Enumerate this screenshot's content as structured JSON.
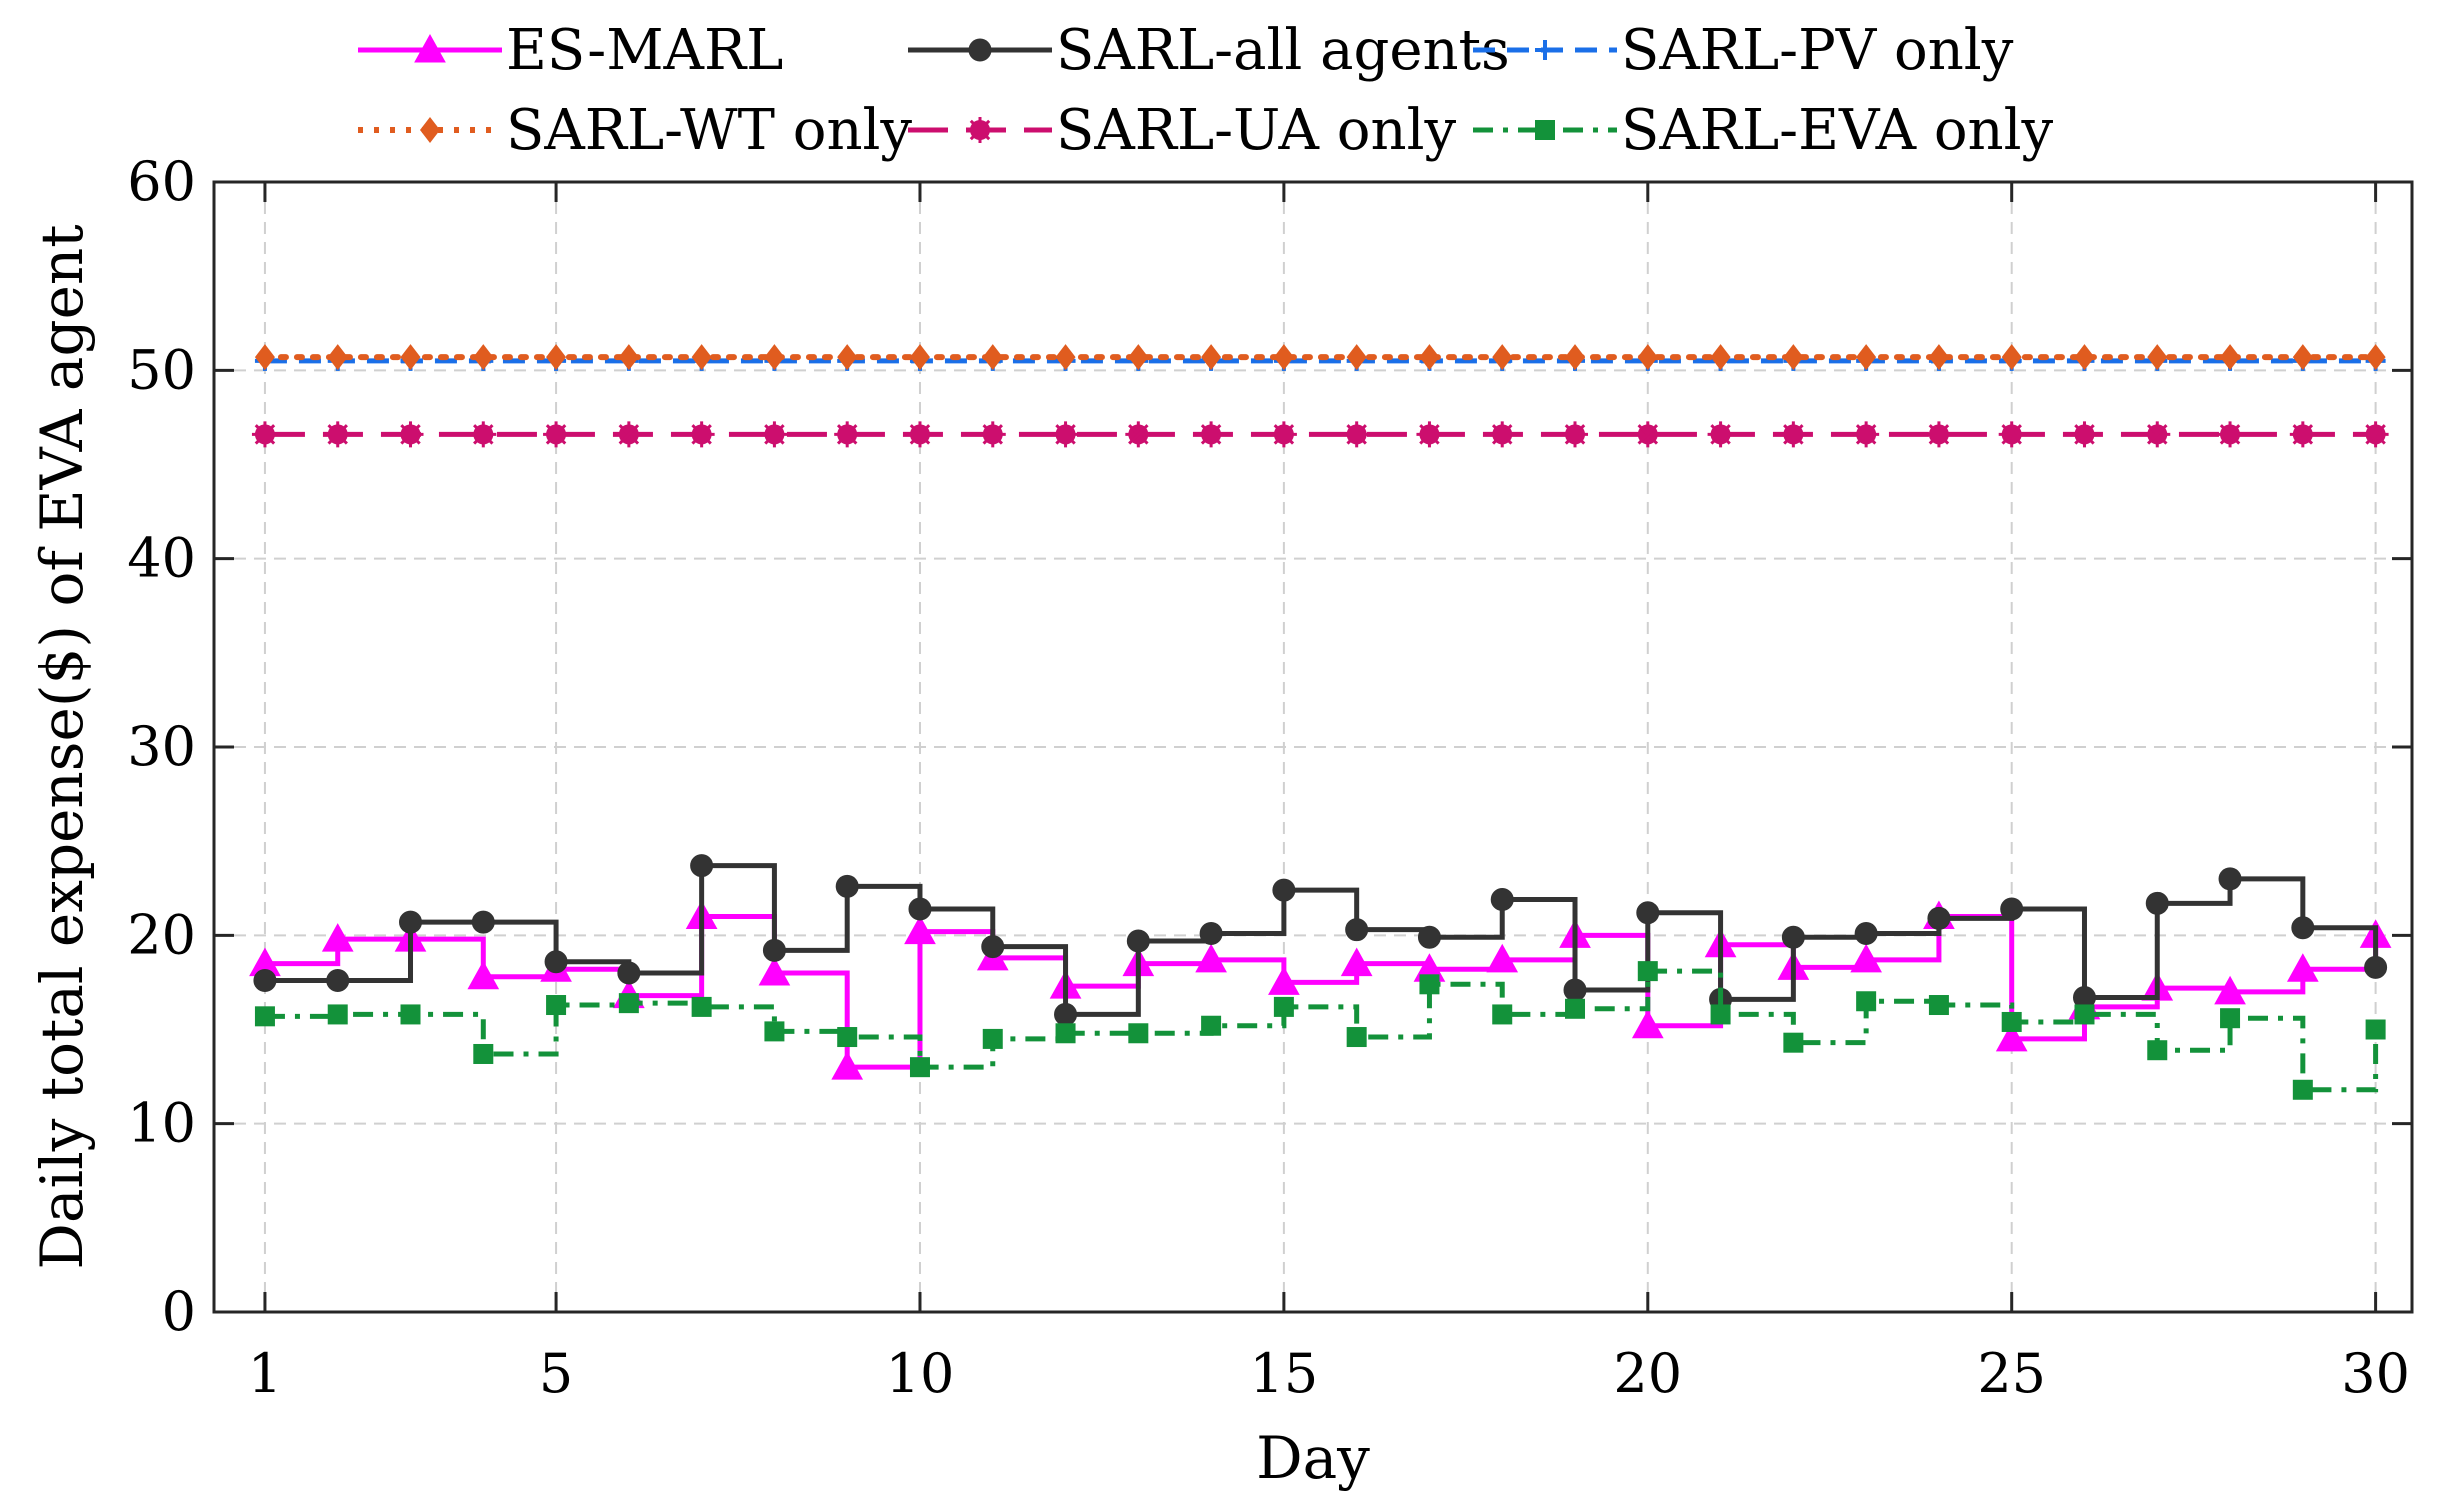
{
  "chart_data": {
    "type": "line",
    "step": "stairs",
    "title": "",
    "xlabel": "Day",
    "ylabel": "Daily total expense($) of EVA agent",
    "xlim": [
      0.3,
      30.5
    ],
    "ylim": [
      0,
      60
    ],
    "xticks": [
      1,
      5,
      10,
      15,
      20,
      25,
      30
    ],
    "yticks": [
      0,
      10,
      20,
      30,
      40,
      50,
      60
    ],
    "grid": true,
    "legend_position": "top-outside",
    "x": [
      1,
      2,
      3,
      4,
      5,
      6,
      7,
      8,
      9,
      10,
      11,
      12,
      13,
      14,
      15,
      16,
      17,
      18,
      19,
      20,
      21,
      22,
      23,
      24,
      25,
      26,
      27,
      28,
      29,
      30
    ],
    "series": [
      {
        "name": "ES-MARL",
        "color": "#ff00ff",
        "line_style": "solid",
        "marker": "triangle",
        "values": [
          18.5,
          19.8,
          19.8,
          17.8,
          18.2,
          16.8,
          21.0,
          18.0,
          13.0,
          20.2,
          18.8,
          17.3,
          18.5,
          18.7,
          17.5,
          18.5,
          18.2,
          18.7,
          20.0,
          15.2,
          19.5,
          18.3,
          18.7,
          21.0,
          14.5,
          16.2,
          17.2,
          17.0,
          18.2,
          20.0
        ]
      },
      {
        "name": "SARL-all agents",
        "color": "#333333",
        "line_style": "solid",
        "marker": "circle",
        "values": [
          17.6,
          17.6,
          20.7,
          20.7,
          18.6,
          18.0,
          23.7,
          19.2,
          22.6,
          21.4,
          19.4,
          15.8,
          19.7,
          20.1,
          22.4,
          20.3,
          19.9,
          21.9,
          17.1,
          21.2,
          16.6,
          19.9,
          20.1,
          20.9,
          21.4,
          16.7,
          21.7,
          23.0,
          20.4,
          18.3
        ]
      },
      {
        "name": "SARL-PV only",
        "color": "#1a6fe8",
        "line_style": "dashed",
        "marker": "plus",
        "values": [
          50.5,
          50.5,
          50.5,
          50.5,
          50.5,
          50.5,
          50.5,
          50.5,
          50.5,
          50.5,
          50.5,
          50.5,
          50.5,
          50.5,
          50.5,
          50.5,
          50.5,
          50.5,
          50.5,
          50.5,
          50.5,
          50.5,
          50.5,
          50.5,
          50.5,
          50.5,
          50.5,
          50.5,
          50.5,
          50.5
        ]
      },
      {
        "name": "SARL-WT only",
        "color": "#e05c1f",
        "line_style": "dotted",
        "marker": "diamond",
        "values": [
          50.7,
          50.7,
          50.7,
          50.7,
          50.7,
          50.7,
          50.7,
          50.7,
          50.7,
          50.7,
          50.7,
          50.7,
          50.7,
          50.7,
          50.7,
          50.7,
          50.7,
          50.7,
          50.7,
          50.7,
          50.7,
          50.7,
          50.7,
          50.7,
          50.7,
          50.7,
          50.7,
          50.7,
          50.7,
          50.7
        ]
      },
      {
        "name": "SARL-UA only",
        "color": "#cc0e6e",
        "line_style": "long-dash",
        "marker": "asterisk",
        "values": [
          46.6,
          46.6,
          46.6,
          46.6,
          46.6,
          46.6,
          46.6,
          46.6,
          46.6,
          46.6,
          46.6,
          46.6,
          46.6,
          46.6,
          46.6,
          46.6,
          46.6,
          46.6,
          46.6,
          46.6,
          46.6,
          46.6,
          46.6,
          46.6,
          46.6,
          46.6,
          46.6,
          46.6,
          46.6,
          46.6
        ]
      },
      {
        "name": "SARL-EVA only",
        "color": "#13923a",
        "line_style": "dash-dot",
        "marker": "square",
        "values": [
          15.7,
          15.8,
          15.8,
          13.7,
          16.3,
          16.4,
          16.2,
          14.9,
          14.6,
          13.0,
          14.5,
          14.8,
          14.8,
          15.2,
          16.2,
          14.6,
          17.4,
          15.8,
          16.1,
          18.1,
          15.8,
          14.3,
          16.5,
          16.3,
          15.4,
          15.8,
          13.9,
          15.6,
          11.8,
          15.0
        ]
      }
    ]
  }
}
